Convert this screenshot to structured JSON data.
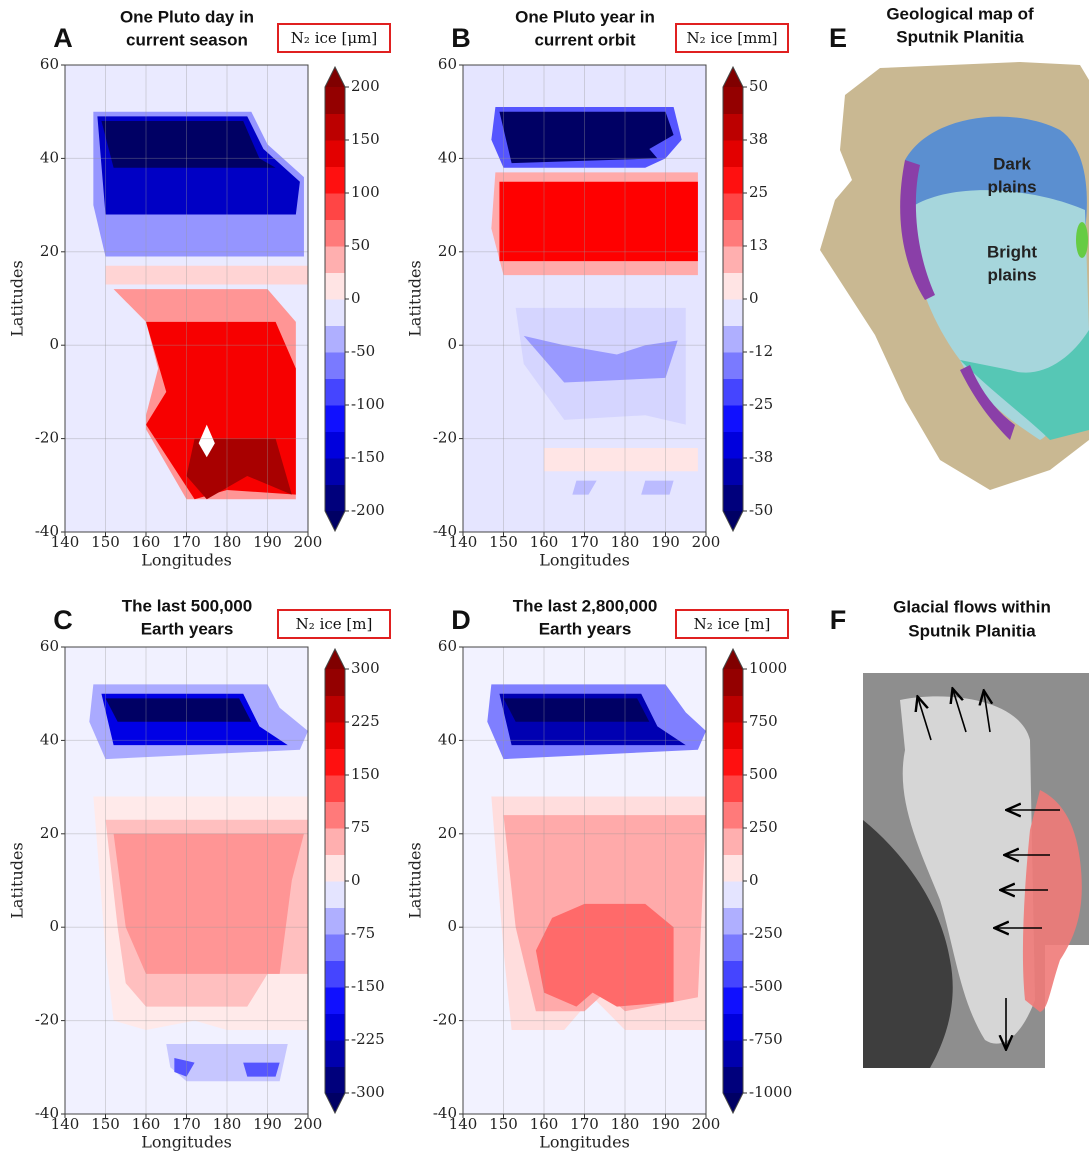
{
  "chart_data": [
    {
      "type": "contour",
      "label": "A",
      "title": [
        "One Pluto day in",
        "current season"
      ],
      "unit": "N₂ ice [μm]",
      "xlabel": "Longitudes",
      "ylabel": "Latitudes",
      "xlim": [
        140,
        200
      ],
      "ylim": [
        -40,
        60
      ],
      "xticks": [
        140,
        150,
        160,
        170,
        180,
        190,
        200
      ],
      "yticks": [
        -40,
        -20,
        0,
        20,
        40,
        60
      ],
      "colorbar": {
        "lim": [
          -200,
          200
        ],
        "ticks": [
          200,
          150,
          100,
          50,
          0,
          -50,
          -100,
          -150,
          -200
        ]
      },
      "regions": [
        {
          "value": -10,
          "lon": [
            140,
            200,
            200,
            140
          ],
          "lat": [
            60,
            60,
            -40,
            -40
          ]
        },
        {
          "value": -50,
          "lon": [
            147,
            186,
            190,
            199,
            199,
            150,
            147
          ],
          "lat": [
            50,
            50,
            43,
            36,
            19,
            19,
            30
          ]
        },
        {
          "value": -150,
          "lon": [
            148,
            185,
            189,
            198,
            197,
            150
          ],
          "lat": [
            49,
            49,
            42,
            35,
            28,
            28
          ]
        },
        {
          "value": -200,
          "lon": [
            149,
            184,
            188,
            192,
            152
          ],
          "lat": [
            48,
            48,
            40,
            38,
            38
          ]
        },
        {
          "value": 20,
          "lon": [
            150,
            200,
            200,
            150
          ],
          "lat": [
            17,
            17,
            13,
            13
          ]
        },
        {
          "value": 50,
          "lon": [
            152,
            190,
            197,
            197,
            170,
            160,
            160,
            163,
            160
          ],
          "lat": [
            12,
            12,
            5,
            -33,
            -33,
            -18,
            -15,
            -5,
            5
          ]
        },
        {
          "value": 125,
          "lon": [
            160,
            192,
            197,
            197,
            180,
            172,
            160,
            165
          ],
          "lat": [
            5,
            5,
            -5,
            -32,
            -31,
            -33,
            -17,
            -10
          ]
        },
        {
          "value": 175,
          "lon": [
            172,
            192,
            196,
            185,
            175,
            170
          ],
          "lat": [
            -20,
            -20,
            -32,
            -28,
            -33,
            -28
          ]
        },
        {
          "value": 0,
          "lon": [
            175,
            177,
            175,
            173
          ],
          "lat": [
            -17,
            -21,
            -24,
            -21
          ]
        }
      ]
    },
    {
      "type": "contour",
      "label": "B",
      "title": [
        "One Pluto year in",
        "current orbit"
      ],
      "unit": "N₂ ice [mm]",
      "xlabel": "Longitudes",
      "ylabel": "Latitudes",
      "xlim": [
        140,
        200
      ],
      "ylim": [
        -40,
        60
      ],
      "xticks": [
        140,
        150,
        160,
        170,
        180,
        190,
        200
      ],
      "yticks": [
        -40,
        -20,
        0,
        20,
        40,
        60
      ],
      "colorbar": {
        "lim": [
          -50,
          50
        ],
        "ticks": [
          50,
          {
            "value": 37.5,
            "label": "38"
          },
          25,
          {
            "value": 12.5,
            "label": "13"
          },
          0,
          {
            "value": -12.5,
            "label": "-12"
          },
          -25,
          {
            "value": -37.5,
            "label": "-38"
          },
          -50
        ]
      },
      "regions": [
        {
          "value": -3,
          "lon": [
            140,
            200,
            200,
            140
          ],
          "lat": [
            60,
            60,
            -40,
            -40
          ]
        },
        {
          "value": -20,
          "lon": [
            148,
            192,
            194,
            190,
            185,
            150,
            147
          ],
          "lat": [
            51,
            51,
            44,
            40,
            38,
            38,
            44
          ]
        },
        {
          "value": -50,
          "lon": [
            149,
            190,
            192,
            186,
            188,
            152
          ],
          "lat": [
            50,
            50,
            45,
            42,
            40,
            39
          ]
        },
        {
          "value": 10,
          "lon": [
            148,
            198,
            198,
            150,
            147
          ],
          "lat": [
            37,
            37,
            15,
            15,
            25
          ]
        },
        {
          "value": 30,
          "lon": [
            149,
            198,
            198,
            149
          ],
          "lat": [
            35,
            35,
            18,
            18
          ]
        },
        {
          "value": -5,
          "lon": [
            153,
            195,
            195,
            185,
            165,
            160,
            155
          ],
          "lat": [
            8,
            8,
            -17,
            -15,
            -16,
            -10,
            -4
          ]
        },
        {
          "value": -12,
          "lon": [
            155,
            165,
            178,
            185,
            193,
            190,
            165
          ],
          "lat": [
            2,
            0,
            -2,
            0,
            1,
            -7,
            -8
          ]
        },
        {
          "value": 3,
          "lon": [
            160,
            198,
            198,
            160
          ],
          "lat": [
            -22,
            -22,
            -27,
            -27
          ]
        },
        {
          "value": -8,
          "lon": [
            168,
            173,
            171,
            167
          ],
          "lat": [
            -29,
            -29,
            -32,
            -32
          ]
        },
        {
          "value": -8,
          "lon": [
            185,
            192,
            191,
            184
          ],
          "lat": [
            -29,
            -29,
            -32,
            -32
          ]
        }
      ]
    },
    {
      "type": "contour",
      "label": "C",
      "title": [
        "The last 500,000",
        "Earth years"
      ],
      "unit": "N₂ ice [m]",
      "xlabel": "Longitudes",
      "ylabel": "Latitudes",
      "xlim": [
        140,
        200
      ],
      "ylim": [
        -40,
        60
      ],
      "xticks": [
        140,
        150,
        160,
        170,
        180,
        190,
        200
      ],
      "yticks": [
        -40,
        -20,
        0,
        20,
        40,
        60
      ],
      "colorbar": {
        "lim": [
          -300,
          300
        ],
        "ticks": [
          300,
          225,
          150,
          75,
          0,
          -75,
          -150,
          -225,
          -300
        ]
      },
      "regions": [
        {
          "value": -10,
          "lon": [
            140,
            200,
            200,
            140
          ],
          "lat": [
            60,
            60,
            -40,
            -40
          ]
        },
        {
          "value": -60,
          "lon": [
            147,
            190,
            193,
            200,
            198,
            150,
            146
          ],
          "lat": [
            52,
            52,
            47,
            42,
            38,
            36,
            44
          ]
        },
        {
          "value": -200,
          "lon": [
            149,
            184,
            188,
            195,
            152
          ],
          "lat": [
            50,
            50,
            43,
            39,
            39
          ]
        },
        {
          "value": -300,
          "lon": [
            150,
            183,
            186,
            153
          ],
          "lat": [
            49,
            49,
            44,
            44
          ]
        },
        {
          "value": 15,
          "lon": [
            147,
            200,
            200,
            180,
            172,
            160,
            152,
            150
          ],
          "lat": [
            28,
            28,
            -22,
            -22,
            -20,
            -22,
            -20,
            -5
          ]
        },
        {
          "value": 45,
          "lon": [
            150,
            200,
            200,
            190,
            185,
            160,
            155,
            153
          ],
          "lat": [
            23,
            23,
            -10,
            -10,
            -17,
            -17,
            -12,
            0
          ]
        },
        {
          "value": 75,
          "lon": [
            152,
            199,
            196,
            193,
            160,
            155
          ],
          "lat": [
            20,
            20,
            10,
            -10,
            -10,
            0
          ]
        },
        {
          "value": -40,
          "lon": [
            165,
            195,
            193,
            170,
            166
          ],
          "lat": [
            -25,
            -25,
            -33,
            -33,
            -30
          ]
        },
        {
          "value": -120,
          "lon": [
            167,
            172,
            170,
            167
          ],
          "lat": [
            -28,
            -29,
            -32,
            -31
          ]
        },
        {
          "value": -120,
          "lon": [
            184,
            193,
            192,
            185
          ],
          "lat": [
            -29,
            -29,
            -32,
            -32
          ]
        }
      ]
    },
    {
      "type": "contour",
      "label": "D",
      "title": [
        "The last 2,800,000",
        "Earth years"
      ],
      "unit": "N₂ ice [m]",
      "xlabel": "Longitudes",
      "ylabel": "Latitudes",
      "xlim": [
        140,
        200
      ],
      "ylim": [
        -40,
        60
      ],
      "xticks": [
        140,
        150,
        160,
        170,
        180,
        190,
        200
      ],
      "yticks": [
        -40,
        -20,
        0,
        20,
        40,
        60
      ],
      "colorbar": {
        "lim": [
          -1000,
          1000
        ],
        "ticks": [
          1000,
          750,
          500,
          250,
          0,
          -250,
          -500,
          -750,
          -1000
        ]
      },
      "regions": [
        {
          "value": -30,
          "lon": [
            140,
            200,
            200,
            140
          ],
          "lat": [
            60,
            60,
            -40,
            -40
          ]
        },
        {
          "value": -300,
          "lon": [
            147,
            190,
            195,
            200,
            198,
            150,
            146
          ],
          "lat": [
            52,
            52,
            46,
            42,
            38,
            36,
            44
          ]
        },
        {
          "value": -800,
          "lon": [
            149,
            184,
            188,
            195,
            152
          ],
          "lat": [
            50,
            50,
            43,
            39,
            39
          ]
        },
        {
          "value": -1000,
          "lon": [
            150,
            183,
            186,
            153
          ],
          "lat": [
            49,
            49,
            44,
            44
          ]
        },
        {
          "value": 80,
          "lon": [
            147,
            200,
            200,
            180,
            172,
            165,
            152,
            150
          ],
          "lat": [
            28,
            28,
            -22,
            -22,
            -15,
            -22,
            -22,
            -5
          ]
        },
        {
          "value": 200,
          "lon": [
            150,
            200,
            198,
            180,
            175,
            170,
            158,
            153
          ],
          "lat": [
            24,
            24,
            -15,
            -18,
            -14,
            -18,
            -18,
            0
          ]
        },
        {
          "value": 350,
          "lon": [
            162,
            170,
            185,
            192,
            192,
            178,
            172,
            168,
            160,
            158
          ],
          "lat": [
            2,
            5,
            5,
            0,
            -16,
            -17,
            -14,
            -17,
            -14,
            -5
          ]
        }
      ]
    }
  ],
  "panels": [
    {
      "label": "E",
      "title": [
        "Geological map of",
        "Sputnik Planitia"
      ],
      "annotations": [
        [
          "Dark",
          "plains"
        ],
        [
          "Bright",
          "plains"
        ]
      ]
    },
    {
      "label": "F",
      "title": [
        "Glacial flows within",
        "Sputnik Planitia"
      ]
    }
  ]
}
